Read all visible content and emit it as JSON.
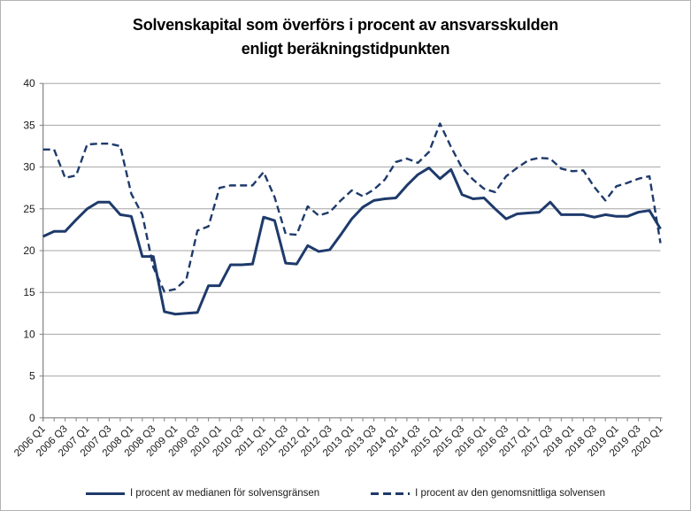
{
  "chart": {
    "title_line1": "Solvenskapital som överförs i procent av ansvarsskulden",
    "title_line2": "enligt beräkningstidpunkten"
  },
  "chart_data": {
    "type": "line",
    "title": "Solvenskapital som överförs i procent av ansvarsskulden enligt beräkningstidpunkten",
    "xlabel": "",
    "ylabel": "",
    "ylim": [
      0,
      40
    ],
    "y_ticks": [
      0,
      5,
      10,
      15,
      20,
      25,
      30,
      35,
      40
    ],
    "grid": true,
    "legend_position": "bottom",
    "line_color": "#1e3a6b",
    "grid_color": "#a6a6a6",
    "axis_color": "#808080",
    "x_label_interval": 2,
    "categories": [
      "2006 Q1",
      "2006 Q2",
      "2006 Q3",
      "2006 Q4",
      "2007 Q1",
      "2007 Q2",
      "2007 Q3",
      "2007 Q4",
      "2008 Q1",
      "2008 Q2",
      "2008 Q3",
      "2008 Q4",
      "2009 Q1",
      "2009 Q2",
      "2009 Q3",
      "2009 Q4",
      "2010 Q1",
      "2010 Q2",
      "2010 Q3",
      "2010 Q4",
      "2011 Q1",
      "2011 Q2",
      "2011 Q3",
      "2011 Q4",
      "2012 Q1",
      "2012 Q2",
      "2012 Q3",
      "2012 Q4",
      "2013 Q1",
      "2013 Q2",
      "2013 Q3",
      "2013 Q4",
      "2014 Q1",
      "2014 Q2",
      "2014 Q3",
      "2014 Q4",
      "2015 Q1",
      "2015 Q2",
      "2015 Q3",
      "2015 Q4",
      "2016 Q1",
      "2016 Q2",
      "2016 Q3",
      "2016 Q4",
      "2017 Q1",
      "2017 Q2",
      "2017 Q3",
      "2017 Q4",
      "2018 Q1",
      "2018 Q2",
      "2018 Q3",
      "2018 Q4",
      "2019 Q1",
      "2019 Q2",
      "2019 Q3",
      "2019 Q4",
      "2020 Q1"
    ],
    "series": [
      {
        "name": "I procent av medianen för solvensgränsen",
        "style": "solid",
        "values": [
          21.7,
          22.3,
          22.3,
          23.7,
          25.0,
          25.8,
          25.8,
          24.3,
          24.1,
          19.3,
          19.3,
          12.7,
          12.4,
          12.5,
          12.6,
          15.8,
          15.8,
          18.3,
          18.3,
          18.4,
          24.0,
          23.6,
          18.5,
          18.4,
          20.6,
          19.9,
          20.1,
          21.9,
          23.8,
          25.2,
          26.0,
          26.2,
          26.3,
          27.8,
          29.1,
          29.9,
          28.6,
          29.7,
          26.7,
          26.2,
          26.3,
          25.0,
          23.8,
          24.4,
          24.5,
          24.6,
          25.8,
          24.3,
          24.3,
          24.3,
          24.0,
          24.3,
          24.1,
          24.1,
          24.6,
          24.8,
          22.6
        ]
      },
      {
        "name": "I procent av den genomsnittliga solvensen",
        "style": "dashed",
        "values": [
          32.1,
          32.1,
          28.7,
          29.0,
          32.7,
          32.8,
          32.8,
          32.5,
          26.8,
          24.3,
          18.0,
          15.1,
          15.4,
          16.6,
          22.4,
          22.9,
          27.5,
          27.8,
          27.8,
          27.8,
          29.4,
          26.4,
          22.0,
          21.9,
          25.3,
          24.2,
          24.6,
          26.0,
          27.2,
          26.5,
          27.3,
          28.5,
          30.6,
          31.0,
          30.5,
          31.8,
          35.2,
          32.4,
          29.9,
          28.5,
          27.4,
          27.0,
          28.9,
          29.9,
          30.8,
          31.1,
          31.0,
          29.8,
          29.5,
          29.6,
          27.6,
          26.0,
          27.7,
          28.1,
          28.6,
          28.9,
          20.9
        ]
      }
    ]
  }
}
